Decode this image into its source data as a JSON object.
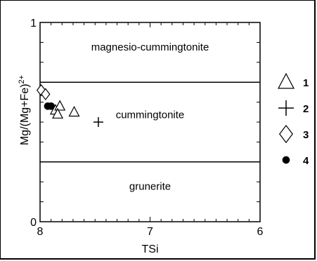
{
  "chart_data": {
    "type": "scatter",
    "xlabel": "TSi",
    "ylabel": "Mg/(Mg+Fe)",
    "ylabel_superscript": "2+",
    "xlim": [
      8,
      6
    ],
    "ylim": [
      0,
      1
    ],
    "x_ticks": [
      {
        "value": 8,
        "label": "8"
      },
      {
        "value": 7,
        "label": "7"
      },
      {
        "value": 6,
        "label": "6"
      }
    ],
    "y_ticks": [
      {
        "value": 0,
        "label": "0"
      },
      {
        "value": 1,
        "label": "1"
      }
    ],
    "boundaries": [
      0.7,
      0.3
    ],
    "fields": [
      {
        "name": "magnesio-cummingtonite",
        "x": 7.0,
        "y": 0.86
      },
      {
        "name": "cummingtonite",
        "x": 7.0,
        "y": 0.52
      },
      {
        "name": "grunerite",
        "x": 7.0,
        "y": 0.16
      }
    ],
    "legend_position": "right",
    "series": [
      {
        "name": "1",
        "marker": "triangle",
        "points": [
          [
            7.86,
            0.56
          ],
          [
            7.82,
            0.58
          ],
          [
            7.84,
            0.54
          ],
          [
            7.69,
            0.55
          ]
        ]
      },
      {
        "name": "2",
        "marker": "plus",
        "points": [
          [
            7.47,
            0.5
          ]
        ]
      },
      {
        "name": "3",
        "marker": "diamond",
        "points": [
          [
            7.99,
            0.66
          ],
          [
            7.95,
            0.64
          ]
        ]
      },
      {
        "name": "4",
        "marker": "dot",
        "points": [
          [
            7.93,
            0.58
          ],
          [
            7.9,
            0.58
          ]
        ]
      }
    ]
  }
}
